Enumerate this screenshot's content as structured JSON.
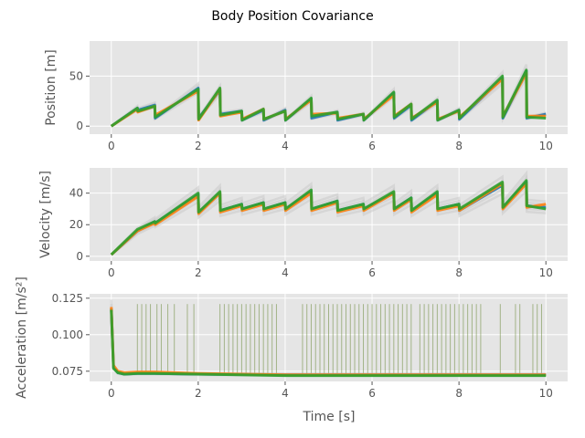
{
  "chart_data": {
    "title": "Body Position Covariance",
    "xlabel": "Time [s]",
    "type": "line",
    "xlim": [
      -0.5,
      10.5
    ],
    "xticks": [
      "0",
      "2",
      "4",
      "6",
      "8",
      "10"
    ],
    "grid": true,
    "series_colors": [
      "#1f77b4",
      "#ff7f0e",
      "#2ca02c",
      "#c8c8c8"
    ],
    "panels": [
      {
        "ylabel": "Position [m]",
        "ylim": [
          -8,
          85
        ],
        "yticks": [
          "0",
          "50"
        ],
        "ytick_values": [
          0,
          50
        ],
        "x": [
          0,
          0.6,
          0.61,
          1.0,
          1.01,
          2.0,
          2.01,
          2.5,
          2.51,
          3.0,
          3.01,
          3.5,
          3.51,
          4.0,
          4.01,
          4.6,
          4.61,
          5.2,
          5.21,
          5.8,
          5.81,
          6.5,
          6.51,
          6.9,
          6.91,
          7.5,
          7.51,
          8.0,
          8.01,
          9.0,
          9.01,
          9.55,
          9.56,
          10.0
        ],
        "series": [
          {
            "values": [
              0,
              18,
              16,
              21,
              8,
              38,
              8,
              36,
              12,
              15,
              6,
              16,
              6,
              16,
              6,
              27,
              8,
              14,
              6,
              12,
              6,
              33,
              8,
              21,
              6,
              25,
              6,
              16,
              7,
              48,
              8,
              55,
              8,
              12
            ]
          },
          {
            "values": [
              0,
              17,
              14,
              20,
              11,
              35,
              6,
              37,
              10,
              14,
              7,
              17,
              7,
              15,
              7,
              26,
              12,
              13,
              8,
              12,
              7,
              31,
              10,
              22,
              8,
              24,
              7,
              15,
              9,
              47,
              10,
              53,
              10,
              10
            ]
          },
          {
            "values": [
              0,
              18,
              15,
              20,
              9,
              37,
              7,
              38,
              11,
              15,
              6,
              17,
              7,
              15,
              6,
              28,
              10,
              14,
              7,
              12,
              6,
              34,
              9,
              22,
              7,
              26,
              6,
              16,
              8,
              50,
              9,
              56,
              9,
              8
            ]
          }
        ]
      },
      {
        "ylabel": "Velocity [m/s]",
        "ylim": [
          -3,
          56
        ],
        "yticks": [
          "0",
          "20",
          "40"
        ],
        "ytick_values": [
          0,
          20,
          40
        ],
        "x": [
          0,
          0.6,
          1.0,
          1.01,
          2.0,
          2.01,
          2.5,
          2.51,
          3.0,
          3.01,
          3.5,
          3.51,
          4.0,
          4.01,
          4.6,
          4.61,
          5.2,
          5.21,
          5.8,
          5.81,
          6.5,
          6.51,
          6.9,
          6.91,
          7.5,
          7.51,
          8.0,
          8.01,
          9.0,
          9.01,
          9.55,
          9.56,
          10.0
        ],
        "series": [
          {
            "values": [
              1,
              16,
              22,
              21,
              39,
              28,
              40,
              29,
              33,
              30,
              34,
              30,
              34,
              30,
              41,
              30,
              35,
              29,
              33,
              30,
              40,
              30,
              37,
              29,
              40,
              30,
              33,
              29,
              45,
              31,
              47,
              32,
              31
            ]
          },
          {
            "values": [
              1,
              16,
              21,
              20,
              38,
              27,
              40,
              28,
              32,
              29,
              33,
              29,
              33,
              29,
              40,
              29,
              34,
              28,
              32,
              29,
              40,
              29,
              36,
              28,
              39,
              29,
              32,
              29,
              46,
              30,
              46,
              31,
              33
            ]
          },
          {
            "values": [
              1,
              17,
              22,
              21,
              40,
              28,
              41,
              29,
              33,
              30,
              34,
              30,
              34,
              30,
              42,
              30,
              35,
              29,
              33,
              30,
              41,
              30,
              37,
              29,
              41,
              30,
              33,
              30,
              47,
              31,
              48,
              32,
              30
            ]
          }
        ]
      },
      {
        "ylabel": "Acceleration [m/s²]",
        "ylim": [
          0.068,
          0.128
        ],
        "yticks": [
          "0.075",
          "0.100",
          "0.125"
        ],
        "ytick_values": [
          0.075,
          0.1,
          0.125
        ],
        "x": [
          0,
          0.05,
          0.15,
          0.3,
          0.6,
          1.0,
          2.0,
          4.0,
          6.0,
          8.0,
          10.0
        ],
        "series": [
          {
            "values": [
              0.118,
              0.078,
              0.074,
              0.073,
              0.0735,
              0.0735,
              0.073,
              0.0725,
              0.0725,
              0.0725,
              0.0725
            ]
          },
          {
            "values": [
              0.119,
              0.079,
              0.075,
              0.074,
              0.0745,
              0.0745,
              0.0735,
              0.0725,
              0.0725,
              0.0725,
              0.0725
            ]
          },
          {
            "values": [
              0.117,
              0.077,
              0.074,
              0.073,
              0.0735,
              0.0735,
              0.073,
              0.072,
              0.072,
              0.072,
              0.072
            ]
          }
        ],
        "spike_value": 0.121,
        "spike_times": [
          0.6,
          0.7,
          0.8,
          0.9,
          1.05,
          1.15,
          1.3,
          1.45,
          1.75,
          1.9,
          2.5,
          2.6,
          2.7,
          2.8,
          2.9,
          3.0,
          3.1,
          3.2,
          3.3,
          3.4,
          3.5,
          3.6,
          3.7,
          3.8,
          4.4,
          4.5,
          4.6,
          4.7,
          4.8,
          4.9,
          5.0,
          5.1,
          5.2,
          5.3,
          5.4,
          5.5,
          5.6,
          5.7,
          5.8,
          5.9,
          6.0,
          6.1,
          6.2,
          6.3,
          6.4,
          6.5,
          6.6,
          6.7,
          6.8,
          6.9,
          7.1,
          7.2,
          7.3,
          7.4,
          7.5,
          7.6,
          7.7,
          7.8,
          7.9,
          8.0,
          8.1,
          8.2,
          8.3,
          8.4,
          8.5,
          8.95,
          9.3,
          9.4,
          9.7,
          9.8,
          9.9
        ]
      }
    ]
  }
}
